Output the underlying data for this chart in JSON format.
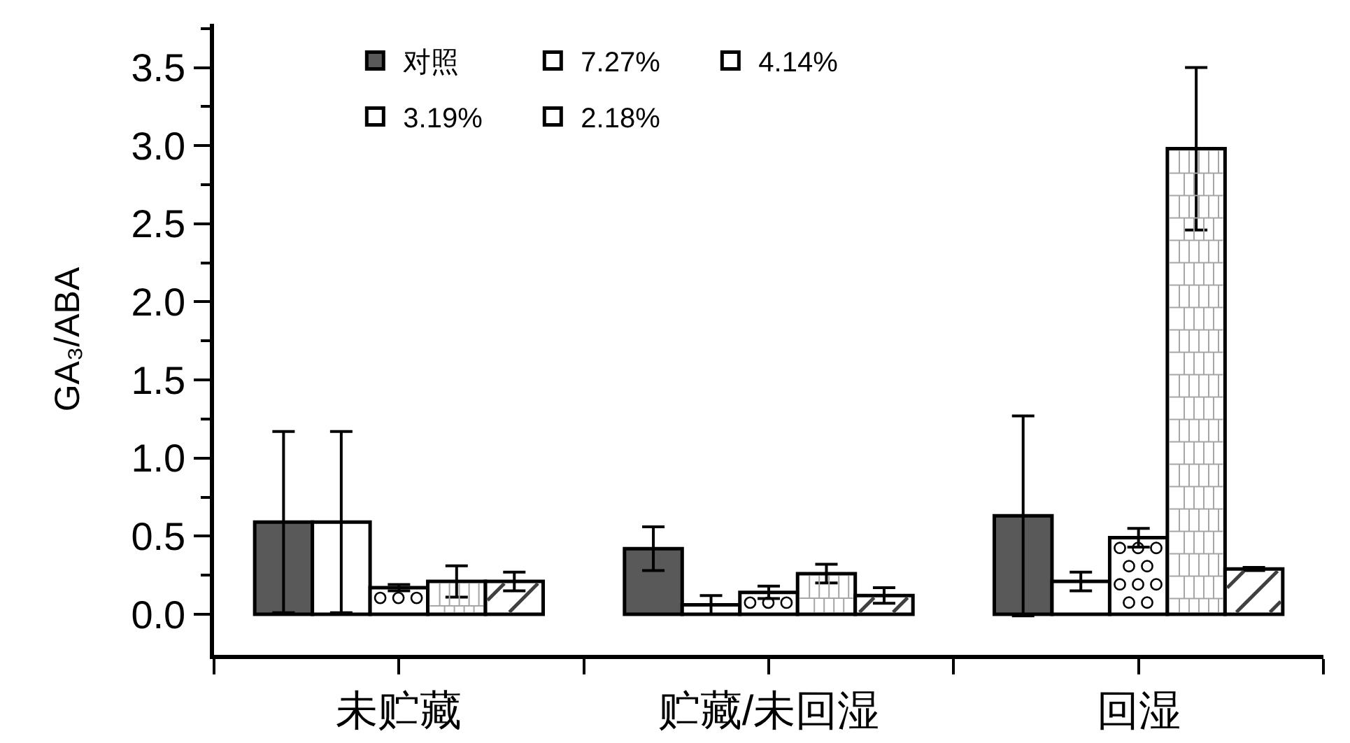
{
  "chart_data": {
    "type": "bar",
    "ylabel": "GA₃/ABA",
    "categories": [
      "未贮藏",
      "贮藏/未回湿",
      "回湿"
    ],
    "series": [
      {
        "name": "对照",
        "color": "#595959",
        "values": [
          0.59,
          0.42,
          0.63
        ],
        "errors": [
          0.58,
          0.14,
          0.64
        ]
      },
      {
        "name": "7.27%",
        "color": "#ffffff",
        "values": [
          0.59,
          0.06,
          0.21
        ],
        "errors": [
          0.58,
          0.06,
          0.06
        ]
      },
      {
        "name": "4.14%",
        "color": "#ffffff",
        "values": [
          0.17,
          0.14,
          0.49
        ],
        "errors": [
          0.02,
          0.04,
          0.06
        ]
      },
      {
        "name": "3.19%",
        "color": "#ffffff",
        "values": [
          0.21,
          0.26,
          2.98
        ],
        "errors": [
          0.1,
          0.06,
          0.52
        ]
      },
      {
        "name": "2.18%",
        "color": "#ffffff",
        "values": [
          0.21,
          0.12,
          0.29
        ],
        "errors": [
          0.06,
          0.05,
          0.01
        ]
      }
    ],
    "ylim": [
      -0.26,
      3.78
    ],
    "yticks": [
      {
        "value": 0,
        "label": "0.0"
      },
      {
        "value": 0.25,
        "label": null
      },
      0.5,
      {
        "value": 0.75,
        "label": null
      },
      {
        "value": 1,
        "label": "1.0"
      },
      {
        "value": 1.25,
        "label": null
      },
      1.5,
      {
        "value": 1.75,
        "label": null
      },
      {
        "value": 2,
        "label": "2.0"
      },
      {
        "value": 2.25,
        "label": null
      },
      2.5,
      {
        "value": 2.75,
        "label": null
      },
      {
        "value": 3,
        "label": "3.0"
      },
      {
        "value": 3.25,
        "label": null
      },
      3.5,
      {
        "value": 3.75,
        "label": null
      }
    ],
    "legend": "top"
  }
}
